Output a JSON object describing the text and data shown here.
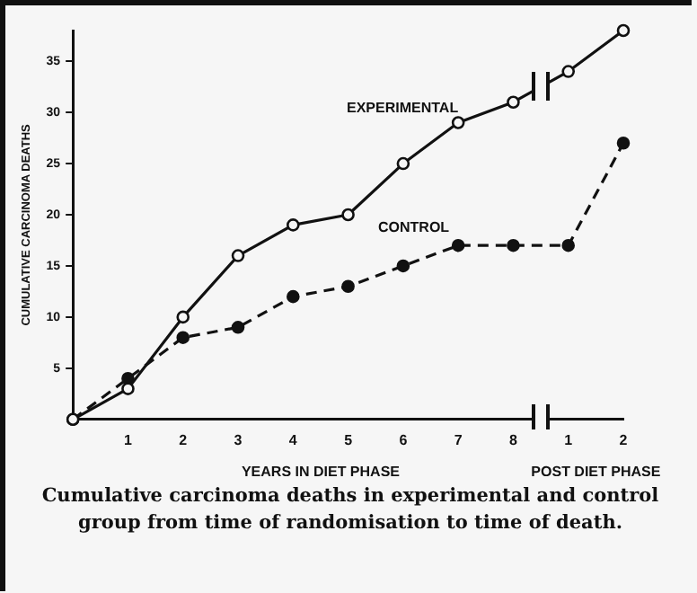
{
  "chart_data": {
    "type": "line",
    "xlabel": "YEARS IN DIET PHASE",
    "ylabel": "CUMULATIVE CARCINOMA DEATHS",
    "categories": [
      null,
      "1",
      "2",
      "3",
      "4",
      "5",
      "6",
      "7",
      "8",
      "1",
      "2"
    ],
    "series": [
      {
        "name": "EXPERIMENTAL",
        "color": "#111111",
        "line_style": "solid",
        "values": [
          0,
          3,
          10,
          16,
          19,
          20,
          25,
          29,
          31,
          34,
          38
        ]
      },
      {
        "name": "CONTROL",
        "color": "#111111",
        "line_style": "dashed",
        "values": [
          0,
          4,
          8,
          9,
          12,
          13,
          15,
          17,
          17,
          17,
          27
        ]
      }
    ],
    "ylim": [
      0,
      38
    ],
    "yticks": [
      5,
      10,
      15,
      20,
      25,
      30,
      35
    ],
    "grid": false,
    "legend": false,
    "marker": "circle",
    "annotations": [
      "POST DIET PHASE",
      "Cumulative carcinoma deaths in experimental and control group from time of randomisation to time of death."
    ]
  }
}
